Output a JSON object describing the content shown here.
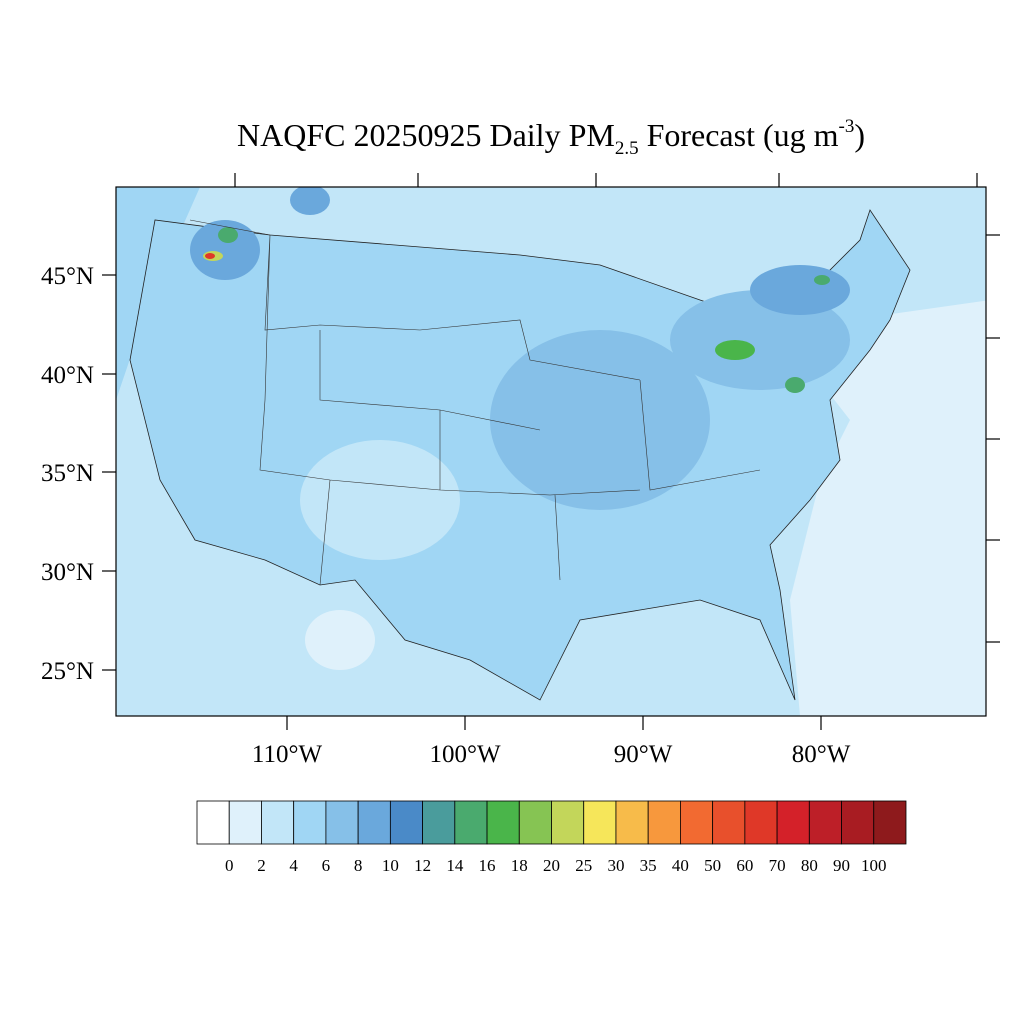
{
  "title": {
    "main": "NAQFC 20250925 Daily PM",
    "subscript": "2.5",
    "middle": " Forecast (ug m",
    "superscript": "-3",
    "end": ")"
  },
  "lat_labels": [
    "45°N",
    "40°N",
    "35°N",
    "30°N",
    "25°N"
  ],
  "lon_labels": [
    "110°W",
    "100°W",
    "90°W",
    "80°W"
  ],
  "colorbar": {
    "labels": [
      "0",
      "2",
      "4",
      "6",
      "8",
      "10",
      "12",
      "14",
      "16",
      "18",
      "20",
      "25",
      "30",
      "35",
      "40",
      "50",
      "60",
      "70",
      "80",
      "90",
      "100"
    ],
    "colors": [
      "#ffffff",
      "#dff1fb",
      "#c2e6f8",
      "#a0d6f4",
      "#86c0e8",
      "#6aa8dc",
      "#4a8ac8",
      "#4a9c9c",
      "#4aaa6e",
      "#4ab54a",
      "#86c453",
      "#c3d65a",
      "#f6e65a",
      "#f7bb4a",
      "#f7983d",
      "#f26a31",
      "#e8502c",
      "#df3828",
      "#d42129",
      "#bd1f28",
      "#a81c22",
      "#8e1a1c"
    ]
  }
}
